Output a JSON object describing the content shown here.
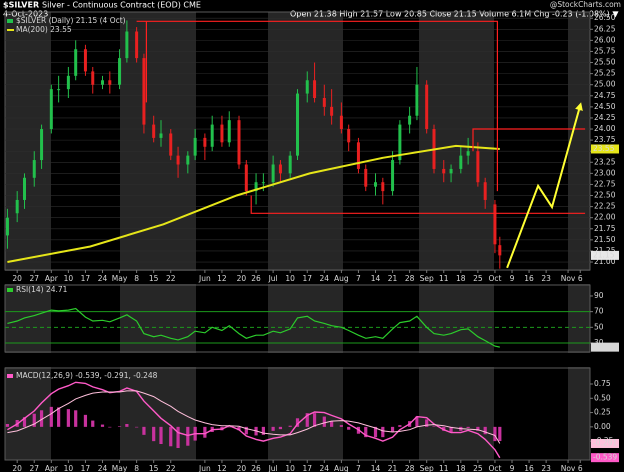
{
  "header": {
    "symbol": "$SILVER",
    "name": "Silver - Continuous Contract (EOD) CME",
    "date": "4-Oct-2023",
    "quote": "Open 21.38 High 21.57 Low 20.85 Close 21.15 Volume 6.1M Chg -0.23 (-1.08%) ▼",
    "source": "@StockCharts.com"
  },
  "chart_data": [
    {
      "type": "candlestick",
      "name": "$SILVER (Daily) 21.15 (4 Oct)",
      "up_color": "#22c04c",
      "down_color": "#e82020",
      "x": [
        -4,
        0,
        3,
        7,
        10,
        14,
        17,
        21,
        24,
        28,
        31,
        35,
        38,
        42,
        45,
        49,
        52,
        56,
        59,
        63,
        66,
        70,
        73,
        77,
        80,
        84,
        87,
        91,
        94,
        98,
        101,
        105,
        108,
        112,
        115,
        119,
        122,
        126,
        129,
        133,
        136,
        140,
        143,
        147,
        150,
        154,
        157,
        161,
        164,
        168,
        171,
        175,
        178,
        182,
        185,
        189,
        192,
        196,
        198
      ],
      "open": [
        21.6,
        22.1,
        22.4,
        22.9,
        23.3,
        24.0,
        24.9,
        24.9,
        25.2,
        25.8,
        25.3,
        25.0,
        25.1,
        25.0,
        25.6,
        26.2,
        25.6,
        24.1,
        23.8,
        23.9,
        23.4,
        23.2,
        23.4,
        23.8,
        23.6,
        24.1,
        23.7,
        24.2,
        23.2,
        22.6,
        22.8,
        22.8,
        23.2,
        23.0,
        23.4,
        24.8,
        25.1,
        24.7,
        24.5,
        24.3,
        24.0,
        23.7,
        23.1,
        22.7,
        22.8,
        22.6,
        23.3,
        24.1,
        24.3,
        25.0,
        24.0,
        23.1,
        23.0,
        23.1,
        23.4,
        23.5,
        22.8,
        22.3,
        21.38
      ],
      "high": [
        22.2,
        22.6,
        23.0,
        23.5,
        24.1,
        25.0,
        25.2,
        25.4,
        26.0,
        25.9,
        25.4,
        25.2,
        25.3,
        25.8,
        26.45,
        26.3,
        25.7,
        24.3,
        24.2,
        24.0,
        23.6,
        23.5,
        24.0,
        23.9,
        24.3,
        24.3,
        24.4,
        24.3,
        23.3,
        23.0,
        23.0,
        23.4,
        23.3,
        23.5,
        24.9,
        25.3,
        25.5,
        25.0,
        24.9,
        24.6,
        24.1,
        23.8,
        23.2,
        23.0,
        22.9,
        23.5,
        24.2,
        24.5,
        25.4,
        25.1,
        24.1,
        23.3,
        23.2,
        23.6,
        23.8,
        23.7,
        22.9,
        22.4,
        21.57
      ],
      "low": [
        21.3,
        21.9,
        22.2,
        22.7,
        23.1,
        23.9,
        24.6,
        24.7,
        25.1,
        25.2,
        24.8,
        24.9,
        24.8,
        24.9,
        25.5,
        25.5,
        23.9,
        23.7,
        23.6,
        23.3,
        22.9,
        23.0,
        23.3,
        23.3,
        23.5,
        23.6,
        23.6,
        23.1,
        22.5,
        22.3,
        22.6,
        22.7,
        22.8,
        22.9,
        23.3,
        24.6,
        24.6,
        24.3,
        24.1,
        23.9,
        23.5,
        23.0,
        22.6,
        22.5,
        22.3,
        22.5,
        23.2,
        23.9,
        24.2,
        23.9,
        23.0,
        22.8,
        22.8,
        23.0,
        23.2,
        22.7,
        22.2,
        21.2,
        20.85
      ],
      "close": [
        22.0,
        22.4,
        22.9,
        23.3,
        24.0,
        24.9,
        24.9,
        25.2,
        25.8,
        25.3,
        25.0,
        25.1,
        25.0,
        25.6,
        26.2,
        25.6,
        24.1,
        23.8,
        23.9,
        23.4,
        23.2,
        23.4,
        23.8,
        23.6,
        24.1,
        23.7,
        24.2,
        23.2,
        22.6,
        22.8,
        22.8,
        23.2,
        23.0,
        23.4,
        24.8,
        25.1,
        24.7,
        24.5,
        24.3,
        24.0,
        23.7,
        23.1,
        22.7,
        22.8,
        22.6,
        23.3,
        24.1,
        24.3,
        25.0,
        24.0,
        23.1,
        23.0,
        23.1,
        23.4,
        23.5,
        22.8,
        22.4,
        21.4,
        21.15
      ],
      "overlays": [
        {
          "name": "MA(200) 23.55",
          "color": "#e6e619",
          "x": [
            -4,
            30,
            60,
            90,
            120,
            150,
            180,
            198
          ],
          "values": [
            21.0,
            21.35,
            21.85,
            22.5,
            23.0,
            23.35,
            23.62,
            23.55
          ]
        }
      ],
      "annotations": [
        {
          "color": "#ff2020",
          "x": [
            49,
            197,
            197
          ],
          "values": [
            26.43,
            26.43,
            22.6
          ]
        },
        {
          "color": "#ff2020",
          "x": [
            53,
            53
          ],
          "values": [
            26.43,
            24.6
          ]
        },
        {
          "color": "#ff2020",
          "x": [
            96,
            96,
            233
          ],
          "values": [
            22.5,
            22.1,
            22.1
          ]
        },
        {
          "color": "#ff2020",
          "x": [
            187,
            187,
            233
          ],
          "values": [
            23.5,
            24.0,
            24.0
          ]
        },
        {
          "color": "#ffff33",
          "arrow": true,
          "x": [
            201,
            213.7,
            219.4,
            231
          ],
          "values": [
            20.87,
            22.72,
            22.24,
            24.54
          ]
        }
      ],
      "xlim": [
        -5,
        235
      ],
      "ylim": [
        20.82,
        26.64
      ],
      "grid": true,
      "xticks": [
        {
          "value": 0,
          "label": "20"
        },
        {
          "value": 7,
          "label": "27"
        },
        {
          "value": 14,
          "label": "Apr"
        },
        {
          "value": 21,
          "label": "10"
        },
        {
          "value": 28,
          "label": "17"
        },
        {
          "value": 35,
          "label": "24"
        },
        {
          "value": 42,
          "label": "May"
        },
        {
          "value": 49,
          "label": "8"
        },
        {
          "value": 56,
          "label": "15"
        },
        {
          "value": 63,
          "label": "22"
        },
        {
          "value": 77,
          "label": "Jun"
        },
        {
          "value": 84,
          "label": "12"
        },
        {
          "value": 92,
          "label": "20"
        },
        {
          "value": 98,
          "label": "26"
        },
        {
          "value": 105,
          "label": "Jul"
        },
        {
          "value": 112,
          "label": "10"
        },
        {
          "value": 119,
          "label": "17"
        },
        {
          "value": 126,
          "label": "24"
        },
        {
          "value": 133,
          "label": "Aug"
        },
        {
          "value": 140,
          "label": "7"
        },
        {
          "value": 147,
          "label": "14"
        },
        {
          "value": 154,
          "label": "21"
        },
        {
          "value": 161,
          "label": "28"
        },
        {
          "value": 168,
          "label": "Sep"
        },
        {
          "value": 175,
          "label": "11"
        },
        {
          "value": 182,
          "label": "18"
        },
        {
          "value": 189,
          "label": "25"
        },
        {
          "value": 196,
          "label": "Oct"
        },
        {
          "value": 203,
          "label": "9"
        },
        {
          "value": 210,
          "label": "16"
        },
        {
          "value": 217,
          "label": "23"
        },
        {
          "value": 226,
          "label": "Nov"
        },
        {
          "value": 231,
          "label": "6"
        }
      ],
      "yticks": [
        {
          "value": 26.5,
          "label": "26.50"
        },
        {
          "value": 26.25,
          "label": "26.25"
        },
        {
          "value": 26,
          "label": "26.00"
        },
        {
          "value": 25.75,
          "label": "25.75"
        },
        {
          "value": 25.5,
          "label": "25.50"
        },
        {
          "value": 25.25,
          "label": "25.25"
        },
        {
          "value": 25,
          "label": "25.00"
        },
        {
          "value": 24.75,
          "label": "24.75"
        },
        {
          "value": 24.5,
          "label": "24.50"
        },
        {
          "value": 24.25,
          "label": "24.25"
        },
        {
          "value": 24,
          "label": "24.00"
        },
        {
          "value": 23.75,
          "label": "23.75"
        },
        {
          "value": 23.5,
          "label": "23.50"
        },
        {
          "value": 23.25,
          "label": "23.25"
        },
        {
          "value": 23,
          "label": "23.00"
        },
        {
          "value": 22.75,
          "label": "22.75"
        },
        {
          "value": 22.5,
          "label": "22.50"
        },
        {
          "value": 22.25,
          "label": "22.25"
        },
        {
          "value": 22,
          "label": "22.00"
        },
        {
          "value": 21.75,
          "label": "21.75"
        },
        {
          "value": 21.5,
          "label": "21.50"
        },
        {
          "value": 21.25,
          "label": "21.25"
        },
        {
          "value": 21,
          "label": "21.00"
        }
      ]
    },
    {
      "type": "line",
      "name": "RSI(14) 24.71",
      "color": "#2ccc2c",
      "x": [
        -4,
        0,
        3,
        7,
        10,
        14,
        17,
        21,
        24,
        28,
        31,
        35,
        38,
        42,
        45,
        49,
        52,
        56,
        59,
        63,
        66,
        70,
        73,
        77,
        80,
        84,
        87,
        91,
        94,
        98,
        101,
        105,
        108,
        112,
        115,
        119,
        122,
        126,
        129,
        133,
        136,
        140,
        143,
        147,
        150,
        154,
        157,
        161,
        164,
        168,
        171,
        175,
        178,
        182,
        185,
        189,
        192,
        196,
        198
      ],
      "values": [
        55,
        58,
        62,
        65,
        68,
        72,
        71,
        72,
        74,
        63,
        58,
        59,
        57,
        62,
        66,
        58,
        42,
        38,
        40,
        36,
        34,
        38,
        45,
        43,
        50,
        46,
        52,
        42,
        36,
        40,
        40,
        45,
        43,
        48,
        62,
        64,
        58,
        55,
        52,
        50,
        46,
        40,
        36,
        38,
        36,
        48,
        56,
        58,
        64,
        50,
        42,
        40,
        42,
        47,
        48,
        38,
        33,
        26,
        24.71
      ],
      "reference_lines": [
        70,
        50,
        30
      ],
      "xlim": [
        -5,
        235
      ],
      "ylim": [
        18.5,
        104
      ],
      "yticks": [
        90,
        70,
        50,
        30
      ]
    },
    {
      "type": "combo",
      "name": "MACD(12,26,9) -0.539, -0.291, -0.248",
      "x": [
        -4,
        0,
        3,
        7,
        10,
        14,
        17,
        21,
        24,
        28,
        31,
        35,
        38,
        42,
        45,
        49,
        52,
        56,
        59,
        63,
        66,
        70,
        73,
        77,
        80,
        84,
        87,
        91,
        94,
        98,
        101,
        105,
        108,
        112,
        115,
        119,
        122,
        126,
        129,
        133,
        136,
        140,
        143,
        147,
        150,
        154,
        157,
        161,
        164,
        168,
        171,
        175,
        178,
        182,
        185,
        189,
        192,
        196,
        198
      ],
      "series": [
        {
          "color": "#ff5ac8",
          "values": [
            -0.05,
            0.05,
            0.15,
            0.28,
            0.42,
            0.58,
            0.66,
            0.72,
            0.78,
            0.76,
            0.7,
            0.65,
            0.6,
            0.62,
            0.68,
            0.62,
            0.45,
            0.28,
            0.15,
            0.02,
            -0.1,
            -0.15,
            -0.12,
            -0.12,
            -0.05,
            -0.04,
            0.02,
            -0.05,
            -0.16,
            -0.22,
            -0.25,
            -0.2,
            -0.18,
            -0.12,
            0.05,
            0.2,
            0.26,
            0.25,
            0.2,
            0.14,
            0.05,
            -0.05,
            -0.15,
            -0.2,
            -0.25,
            -0.18,
            -0.05,
            0.05,
            0.18,
            0.16,
            0.05,
            -0.05,
            -0.1,
            -0.1,
            -0.06,
            -0.12,
            -0.22,
            -0.4,
            -0.539
          ]
        },
        {
          "color": "#ffc0dc",
          "values": [
            -0.1,
            -0.07,
            -0.02,
            0.05,
            0.13,
            0.23,
            0.32,
            0.41,
            0.49,
            0.55,
            0.59,
            0.61,
            0.61,
            0.61,
            0.63,
            0.63,
            0.59,
            0.53,
            0.45,
            0.36,
            0.27,
            0.18,
            0.12,
            0.07,
            0.04,
            0.02,
            0.02,
            0.01,
            -0.03,
            -0.07,
            -0.11,
            -0.13,
            -0.14,
            -0.14,
            -0.1,
            -0.04,
            0.02,
            0.07,
            0.1,
            0.11,
            0.1,
            0.07,
            0.03,
            -0.02,
            -0.07,
            -0.09,
            -0.08,
            -0.05,
            0.0,
            0.03,
            0.04,
            0.02,
            -0.01,
            -0.03,
            -0.04,
            -0.05,
            -0.09,
            -0.15,
            -0.291
          ]
        }
      ],
      "histogram": {
        "color": "#c8329e",
        "values": [
          0.05,
          0.12,
          0.17,
          0.23,
          0.29,
          0.35,
          0.34,
          0.31,
          0.29,
          0.21,
          0.11,
          0.04,
          -0.01,
          0.01,
          0.05,
          -0.01,
          -0.14,
          -0.25,
          -0.3,
          -0.34,
          -0.37,
          -0.33,
          -0.24,
          -0.19,
          -0.09,
          -0.06,
          0.0,
          -0.06,
          -0.13,
          -0.15,
          -0.14,
          -0.07,
          -0.04,
          0.02,
          0.15,
          0.24,
          0.24,
          0.18,
          0.1,
          0.03,
          -0.05,
          -0.12,
          -0.18,
          -0.18,
          -0.18,
          -0.09,
          0.03,
          0.1,
          0.18,
          0.13,
          0.01,
          -0.07,
          -0.09,
          -0.07,
          -0.02,
          -0.07,
          -0.13,
          -0.25,
          -0.248
        ]
      },
      "xlim": [
        -5,
        235
      ],
      "ylim": [
        -0.58,
        1.03
      ],
      "yticks": [
        {
          "value": 0.75,
          "label": "0.75"
        },
        {
          "value": 0.5,
          "label": "0.50"
        },
        {
          "value": 0.25,
          "label": "0.25"
        },
        {
          "value": 0,
          "label": "0.00"
        },
        {
          "value": -0.25,
          "label": "-0.25"
        }
      ],
      "xticks": [
        {
          "value": 0,
          "label": "20"
        },
        {
          "value": 7,
          "label": "27"
        },
        {
          "value": 14,
          "label": "Apr"
        },
        {
          "value": 21,
          "label": "10"
        },
        {
          "value": 28,
          "label": "17"
        },
        {
          "value": 35,
          "label": "24"
        },
        {
          "value": 42,
          "label": "May"
        },
        {
          "value": 49,
          "label": "8"
        },
        {
          "value": 56,
          "label": "15"
        },
        {
          "value": 63,
          "label": "22"
        },
        {
          "value": 77,
          "label": "Jun"
        },
        {
          "value": 84,
          "label": "12"
        },
        {
          "value": 92,
          "label": "20"
        },
        {
          "value": 98,
          "label": "26"
        },
        {
          "value": 105,
          "label": "Jul"
        },
        {
          "value": 112,
          "label": "10"
        },
        {
          "value": 119,
          "label": "17"
        },
        {
          "value": 126,
          "label": "24"
        },
        {
          "value": 133,
          "label": "Aug"
        },
        {
          "value": 140,
          "label": "7"
        },
        {
          "value": 147,
          "label": "14"
        },
        {
          "value": 154,
          "label": "21"
        },
        {
          "value": 161,
          "label": "28"
        },
        {
          "value": 168,
          "label": "Sep"
        },
        {
          "value": 175,
          "label": "11"
        },
        {
          "value": 182,
          "label": "18"
        },
        {
          "value": 189,
          "label": "25"
        },
        {
          "value": 196,
          "label": "Oct"
        },
        {
          "value": 203,
          "label": "9"
        },
        {
          "value": 210,
          "label": "16"
        },
        {
          "value": 217,
          "label": "23"
        },
        {
          "value": 226,
          "label": "Nov"
        },
        {
          "value": 231,
          "label": "6"
        }
      ]
    }
  ]
}
